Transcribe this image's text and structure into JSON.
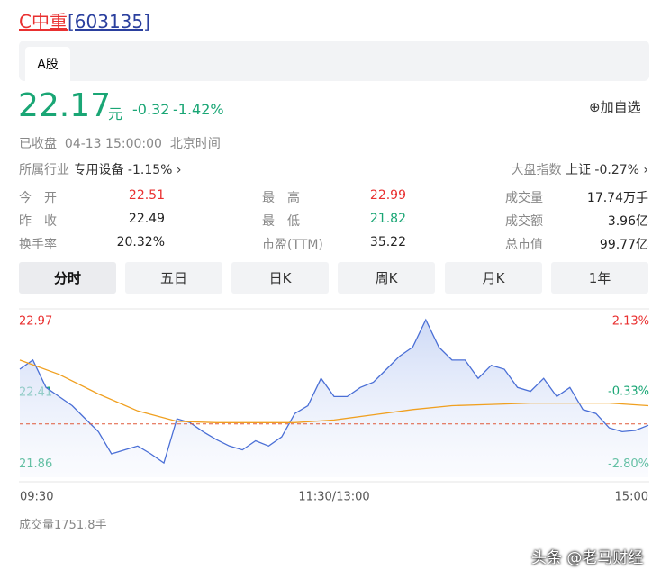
{
  "header": {
    "name": "C中重",
    "code": "[603135]"
  },
  "market_tab": "A股",
  "quote": {
    "price": 22.17,
    "unit": "元",
    "change": -0.32,
    "change_pct": "-1.42%",
    "add": "加自选",
    "status": "已收盘",
    "time": "04-13 15:00:00",
    "tz": "北京时间"
  },
  "industry": {
    "label": "所属行业",
    "name": "专用设备",
    "change": "-1.15%"
  },
  "index": {
    "label": "大盘指数",
    "name": "上证",
    "change": "-0.27%"
  },
  "stats": [
    [
      [
        "今　开",
        "22.51"
      ],
      [
        "最　高",
        "22.99"
      ],
      [
        "成交量",
        "17.74万手"
      ]
    ],
    [
      [
        "昨　收",
        "22.49"
      ],
      [
        "最　低",
        "21.82"
      ],
      [
        "成交额",
        "3.96亿"
      ]
    ],
    [
      [
        "换手率",
        "20.32%"
      ],
      [
        "市盈(TTM)",
        "35.22"
      ],
      [
        "总市值",
        "99.77亿"
      ]
    ]
  ],
  "tabs": [
    "分时",
    "五日",
    "日K",
    "周K",
    "月K",
    "1年"
  ],
  "chart_data": {
    "type": "line",
    "xlim": [
      0,
      240
    ],
    "xticks": [
      {
        "value": 0,
        "label": "09:30"
      },
      {
        "value": 120,
        "label": "11:30/13:00"
      },
      {
        "value": 240,
        "label": "15:00"
      }
    ],
    "ylim": [
      21.76,
      23.04
    ],
    "yticks": [
      22.97,
      22.41,
      21.86
    ],
    "y2lim": [
      -3.25,
      2.45
    ],
    "y2ticks": [
      {
        "value": 2.13,
        "label": "2.13%"
      },
      {
        "value": -0.33,
        "label": "-0.33%"
      },
      {
        "value": -2.8,
        "label": "-2.80%"
      }
    ],
    "series": [
      {
        "color": "#4a6fd6",
        "x": [
          0,
          5,
          10,
          15,
          20,
          25,
          30,
          35,
          40,
          45,
          50,
          55,
          60,
          65,
          70,
          75,
          80,
          85,
          90,
          95,
          100,
          105,
          110,
          115,
          120,
          125,
          130,
          135,
          140,
          145,
          150,
          155,
          160,
          165,
          170,
          175,
          180,
          185,
          190,
          195,
          200,
          205,
          210,
          215,
          220,
          225,
          230,
          235,
          240
        ],
        "values": [
          22.59,
          22.66,
          22.45,
          22.38,
          22.31,
          22.21,
          22.11,
          21.94,
          21.97,
          22.0,
          21.94,
          21.87,
          22.21,
          22.18,
          22.11,
          22.05,
          22.0,
          21.97,
          22.04,
          22.0,
          22.07,
          22.25,
          22.31,
          22.52,
          22.38,
          22.38,
          22.45,
          22.49,
          22.59,
          22.69,
          22.76,
          22.97,
          22.76,
          22.66,
          22.66,
          22.52,
          22.62,
          22.59,
          22.45,
          22.42,
          22.52,
          22.38,
          22.45,
          22.28,
          22.25,
          22.14,
          22.11,
          22.12,
          22.16
        ]
      },
      {
        "color": "#f0a020",
        "x": [
          0,
          15,
          30,
          45,
          60,
          75,
          90,
          105,
          120,
          135,
          150,
          165,
          180,
          195,
          210,
          225,
          240
        ],
        "values": [
          22.66,
          22.55,
          22.4,
          22.27,
          22.19,
          22.18,
          22.18,
          22.18,
          22.2,
          22.24,
          22.28,
          22.31,
          22.32,
          22.33,
          22.33,
          22.33,
          22.31
        ]
      }
    ]
  },
  "volume_label": "成交量1751.8手",
  "watermark": "头条 @老马财经"
}
